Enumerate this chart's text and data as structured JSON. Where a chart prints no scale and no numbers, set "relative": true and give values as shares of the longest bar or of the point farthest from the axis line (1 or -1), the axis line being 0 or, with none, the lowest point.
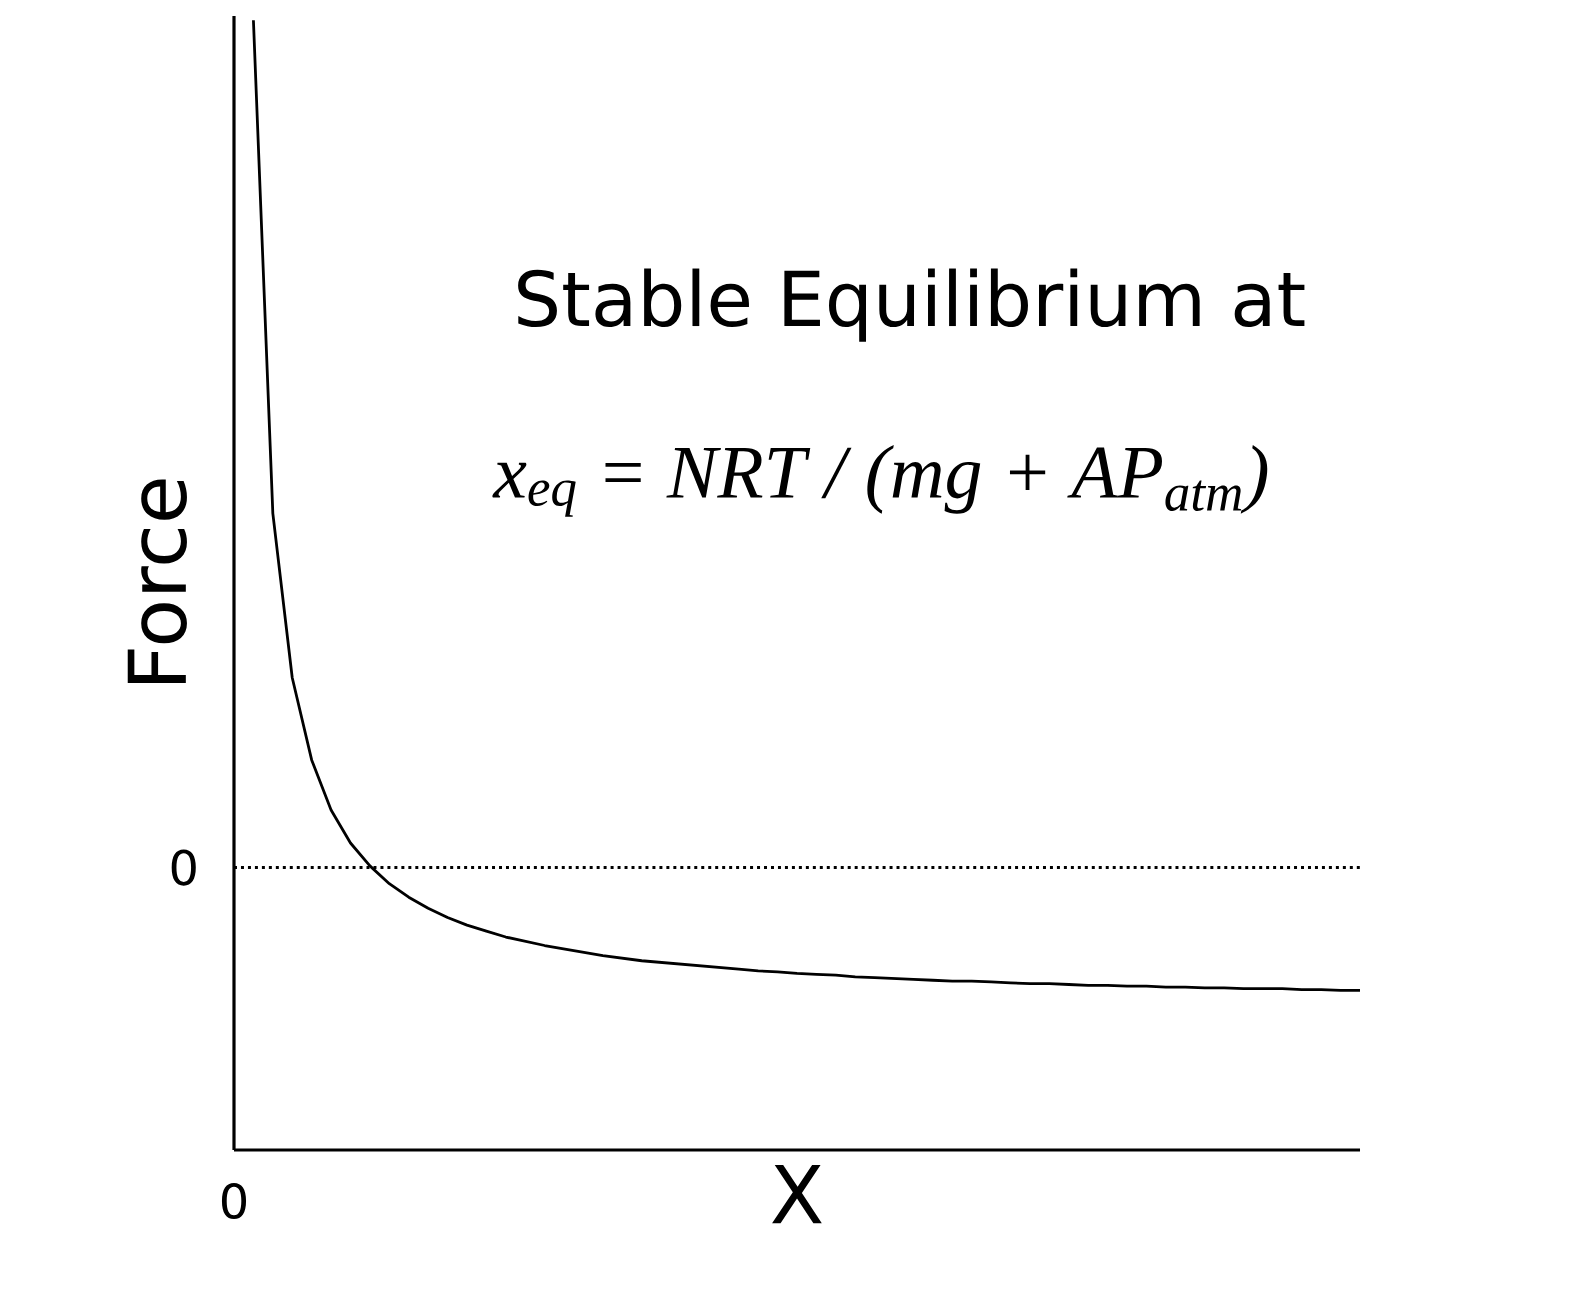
{
  "chart_data": {
    "type": "line",
    "xlabel": "X",
    "ylabel": "Force",
    "relative": true,
    "marker": "none",
    "line_style": "solid",
    "categories": [
      null,
      null,
      null,
      null,
      null,
      null,
      null,
      null,
      null,
      null,
      null,
      null,
      null,
      null,
      null,
      null,
      null,
      null,
      null,
      null,
      null,
      null,
      null,
      null,
      null,
      null,
      null,
      null,
      null,
      null,
      null,
      null,
      null,
      null,
      null,
      null,
      null,
      null,
      null,
      null,
      null,
      null,
      null,
      null,
      null,
      null,
      null,
      null,
      null,
      null,
      null,
      null,
      null,
      null,
      null,
      null,
      null,
      null,
      null
    ],
    "series": [
      {
        "color": "#000000",
        "values": [
          null,
          1,
          0.418,
          0.224,
          0.127,
          0.068,
          0.029,
          0.002,
          -0.019,
          -0.035,
          -0.048,
          -0.059,
          -0.068,
          -0.075,
          -0.082,
          -0.087,
          -0.092,
          -0.096,
          -0.1,
          -0.104,
          -0.107,
          -0.11,
          -0.112,
          -0.114,
          -0.116,
          -0.118,
          -0.12,
          -0.122,
          -0.123,
          -0.125,
          -0.126,
          -0.127,
          -0.129,
          -0.13,
          -0.131,
          -0.132,
          -0.133,
          -0.134,
          -0.134,
          -0.135,
          -0.136,
          -0.137,
          -0.137,
          -0.138,
          -0.139,
          -0.139,
          -0.14,
          -0.14,
          -0.141,
          -0.141,
          -0.142,
          -0.142,
          -0.143,
          -0.143,
          -0.143,
          -0.144,
          -0.144,
          -0.145,
          -0.145
        ]
      }
    ],
    "ref_lines": [
      {
        "axis": "y",
        "value": 0,
        "label": "0",
        "line_style": "dotted",
        "color": "#000000"
      }
    ],
    "annotations": [
      "Stable Equilibrium at",
      "x$_{eq}$ = NRT / (mg + AP$_{atm}$)",
      "0"
    ]
  }
}
